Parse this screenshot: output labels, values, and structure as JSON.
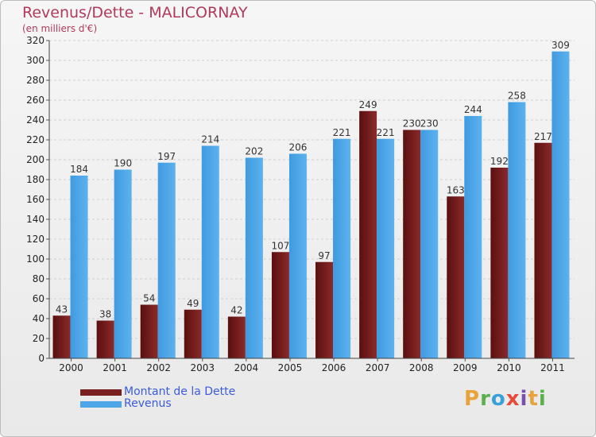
{
  "header": {
    "title": "Revenus/Dette - MALICORNAY",
    "subtitle": "(en milliers d'€)"
  },
  "legend": [
    {
      "label": "Montant de la Dette",
      "color": "#7a1f1f"
    },
    {
      "label": "Revenus",
      "color": "#4da6e8"
    }
  ],
  "brand": {
    "logo_text": "Proxiti",
    "colors": [
      "#e8a33a",
      "#5ab04d",
      "#3aa0d8",
      "#e84a3a",
      "#7a4fb0",
      "#e8a33a",
      "#5ab04d"
    ]
  },
  "chart_data": {
    "type": "bar",
    "title": "Revenus/Dette - MALICORNAY",
    "ylabel": "(en milliers d'€)",
    "categories": [
      "2000",
      "2001",
      "2002",
      "2003",
      "2004",
      "2005",
      "2006",
      "2007",
      "2008",
      "2009",
      "2010",
      "2011"
    ],
    "series": [
      {
        "name": "Montant de la Dette",
        "color": "#7a1f1f",
        "values": [
          43,
          38,
          54,
          49,
          42,
          107,
          97,
          249,
          230,
          163,
          192,
          217
        ]
      },
      {
        "name": "Revenus",
        "color": "#4da6e8",
        "values": [
          184,
          190,
          197,
          214,
          202,
          206,
          221,
          221,
          230,
          244,
          258,
          309
        ]
      }
    ],
    "ylim": [
      0,
      320
    ],
    "yticks": [
      0,
      20,
      40,
      60,
      80,
      100,
      120,
      140,
      160,
      180,
      200,
      220,
      240,
      260,
      280,
      300,
      320
    ],
    "grid": true,
    "legend_position": "bottom-left"
  }
}
